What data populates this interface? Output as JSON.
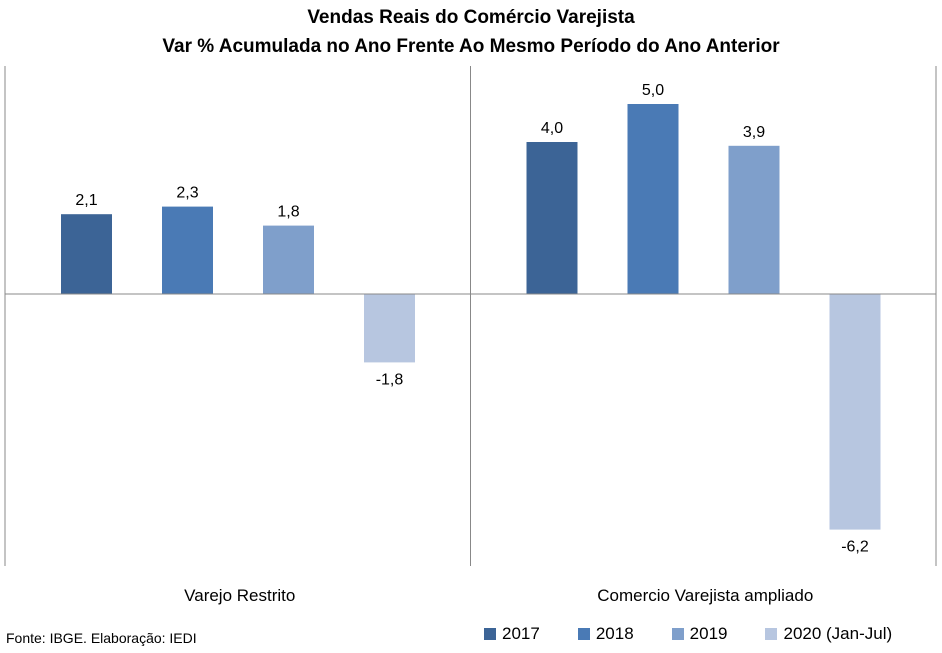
{
  "chart_data": {
    "type": "bar",
    "title": "Vendas Reais do Comércio Varejista",
    "subtitle": "Var % Acumulada no Ano Frente Ao Mesmo Período do Ano Anterior",
    "categories": [
      "Varejo Restrito",
      "Comercio Varejista ampliado"
    ],
    "series": [
      {
        "name": "2017",
        "color": "#3C6496",
        "values": [
          2.1,
          4.0
        ],
        "labels": [
          "2,1",
          "4,0"
        ]
      },
      {
        "name": "2018",
        "color": "#4A7AB5",
        "values": [
          2.3,
          5.0
        ],
        "labels": [
          "2,3",
          "5,0"
        ]
      },
      {
        "name": "2019",
        "color": "#7F9FCB",
        "values": [
          1.8,
          3.9
        ],
        "labels": [
          "1,8",
          "3,9"
        ]
      },
      {
        "name": "2020 (Jan-Jul)",
        "color": "#B7C6E0",
        "values": [
          -1.8,
          -6.2
        ],
        "labels": [
          "-1,8",
          "-6,2"
        ]
      }
    ],
    "ylim": [
      -6.9,
      6.0
    ],
    "grid": false,
    "legend_position": "bottom-right"
  },
  "source": "Fonte: IBGE. Elaboração: IEDI"
}
